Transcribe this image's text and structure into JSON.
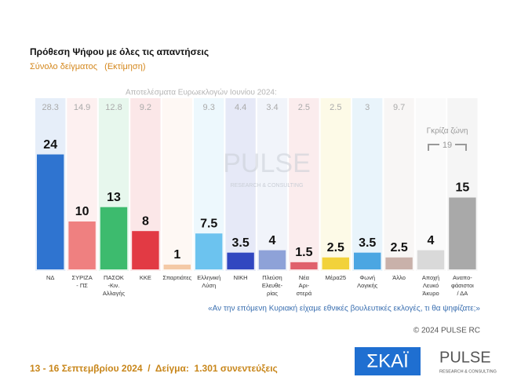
{
  "chart_data": {
    "type": "bar",
    "title": "Πρόθεση Ψήφου με όλες τις απαντήσεις",
    "subtitle": "Σύνολο δείγματος   (Εκτίμηση)",
    "reference_title": "Αποτελέσματα Ευρωεκλογών Ιουνίου 2024:",
    "categories": [
      [
        "ΝΔ"
      ],
      [
        "ΣΥΡΙΖΑ",
        "- ΠΣ"
      ],
      [
        "ΠΑΣΟΚ",
        "-Κιν.",
        "Αλλαγής"
      ],
      [
        "ΚΚΕ"
      ],
      [
        "Σπαρτιάτες"
      ],
      [
        "Ελληνική",
        "Λύση"
      ],
      [
        "ΝΙΚΗ"
      ],
      [
        "Πλεύση",
        "Ελευθε-",
        "ρίας"
      ],
      [
        "Νέα",
        "Αρι-",
        "στερά"
      ],
      [
        "Μέρα25"
      ],
      [
        "Φωνή",
        "Λογικής"
      ],
      [
        "Άλλο"
      ],
      [
        "Αποχή",
        "Λευκό",
        "Άκυρο"
      ],
      [
        "Αναπο-",
        "φάσιστοι",
        "/ ΔΑ"
      ]
    ],
    "values": [
      24,
      10,
      13,
      8,
      1,
      7.5,
      3.5,
      4,
      1.5,
      2.5,
      3.5,
      2.5,
      4,
      15
    ],
    "reference_values": [
      28.3,
      14.9,
      12.8,
      9.2,
      null,
      9.3,
      4.4,
      3.4,
      2.5,
      2.5,
      3,
      9.7,
      null,
      null
    ],
    "colors": [
      "#2f74d0",
      "#ef8080",
      "#3dbb6e",
      "#e23a44",
      "#f4c9a6",
      "#6cc3ef",
      "#3147c0",
      "#8ea2d8",
      "#e0606c",
      "#f2d23a",
      "#4ba6e2",
      "#c9b1aa",
      "#d9d9d9",
      "#a9a9a9"
    ],
    "gray_zone": {
      "label": "Γκρίζα ζώνη",
      "value": 19
    },
    "watermark": "PULSE",
    "watermark_sub": "RESEARCH & CONSULTING",
    "question": "«Αν την επόμενη Κυριακή είχαμε εθνικές βουλευτικές εκλογές, τι θα ψηφίζατε;»",
    "copyright": "© 2024 PULSE RC",
    "footer": "13 - 16 Σεπτεμβρίου 2024  /  Δείγμα:  1.301 συνεντεύξεις",
    "logo_skai": "ΣΚΑΪ",
    "logo_pulse": "PULSE",
    "logo_pulse_sub": "RESEARCH & CONSULTING"
  }
}
